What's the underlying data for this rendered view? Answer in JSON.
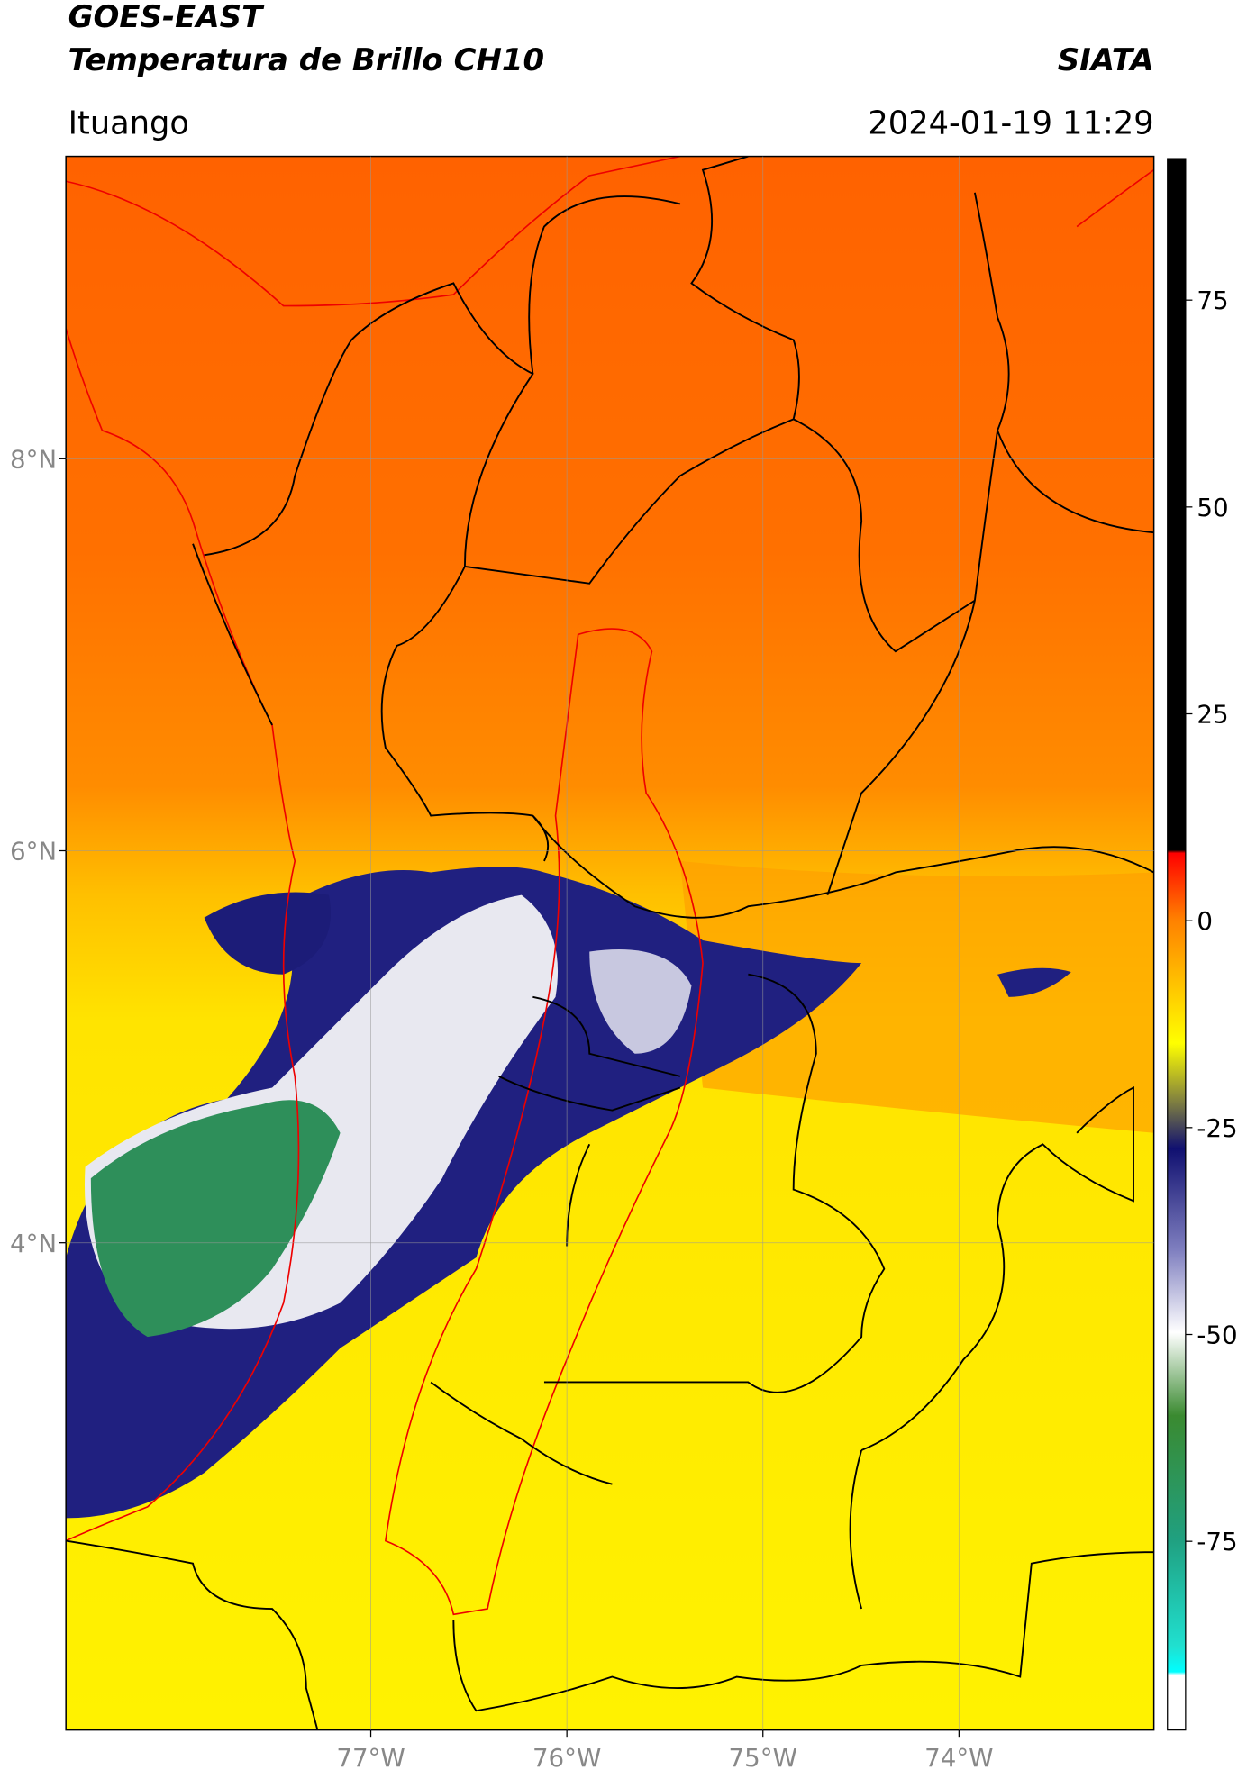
{
  "header": {
    "title": "GOES-EAST",
    "subtitle": "Temperatura de Brillo CH10",
    "brand": "SIATA",
    "location": "Ituango",
    "datetime": "2024-01-19 11:29"
  },
  "map": {
    "xlim": [
      -78.555,
      -73.006
    ],
    "ylim": [
      1.514,
      9.543
    ],
    "xticks": [
      {
        "value": -77,
        "label": "77°W"
      },
      {
        "value": -76,
        "label": "76°W"
      },
      {
        "value": -75,
        "label": "75°W"
      },
      {
        "value": -74,
        "label": "74°W"
      }
    ],
    "yticks": [
      {
        "value": 4,
        "label": "4°N"
      },
      {
        "value": 6,
        "label": "6°N"
      },
      {
        "value": 8,
        "label": "8°N"
      }
    ],
    "grid": true
  },
  "colorbar": {
    "lim": [
      -97.8,
      92.1
    ],
    "ticks": [
      -75,
      -50,
      -25,
      0,
      25,
      50,
      75
    ]
  }
}
